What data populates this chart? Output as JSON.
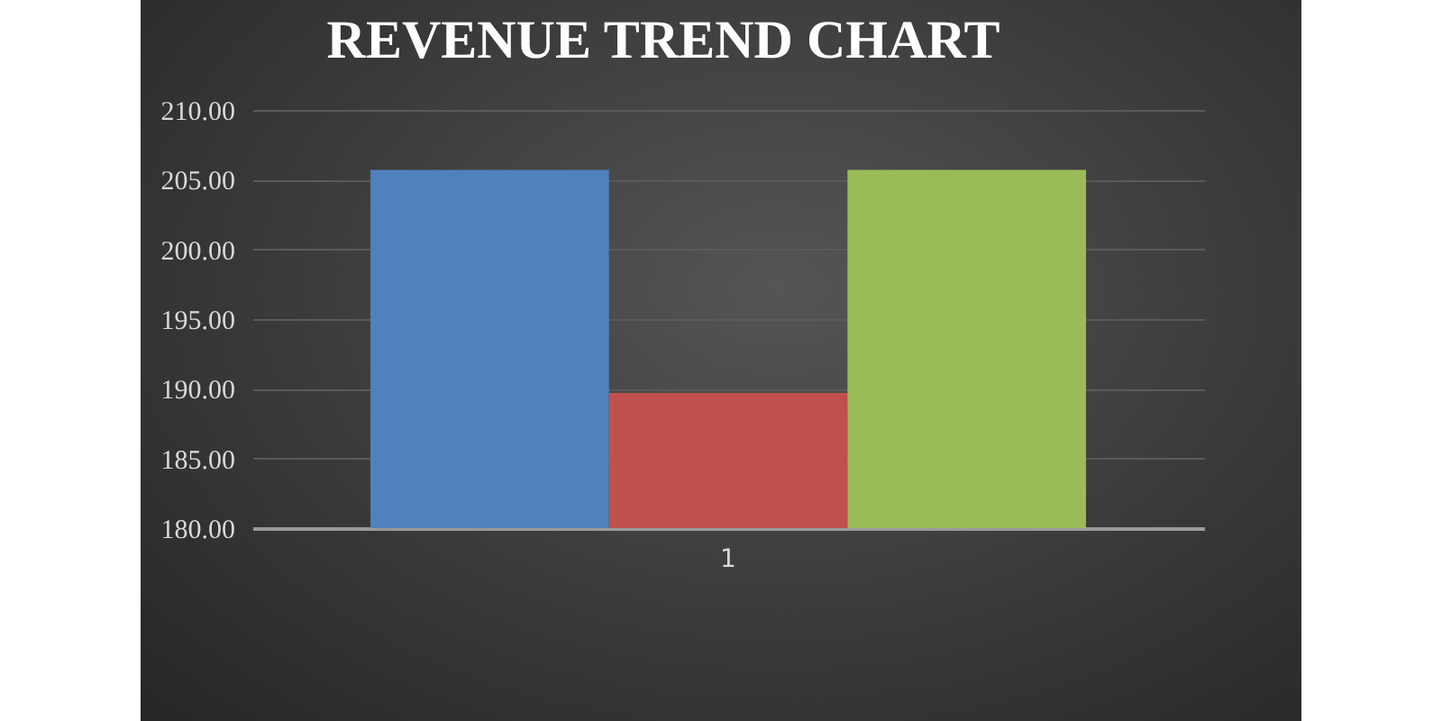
{
  "chart_data": {
    "type": "bar",
    "title": "REVENUE TREND CHART",
    "categories": [
      "1"
    ],
    "series": [
      {
        "color": "#4f81bd",
        "values": [
          205.7
        ]
      },
      {
        "color": "#c0504d",
        "values": [
          189.7
        ]
      },
      {
        "color": "#9bbb59",
        "values": [
          205.7
        ]
      }
    ],
    "ylim": [
      180,
      210
    ],
    "yticks": [
      {
        "value": 180,
        "label": "180.00"
      },
      {
        "value": 185,
        "label": "185.00"
      },
      {
        "value": 190,
        "label": "190.00"
      },
      {
        "value": 195,
        "label": "195.00"
      },
      {
        "value": 200,
        "label": "200.00"
      },
      {
        "value": 205,
        "label": "205.00"
      },
      {
        "value": 210,
        "label": "210.00"
      }
    ],
    "grid": true,
    "legend": false
  }
}
